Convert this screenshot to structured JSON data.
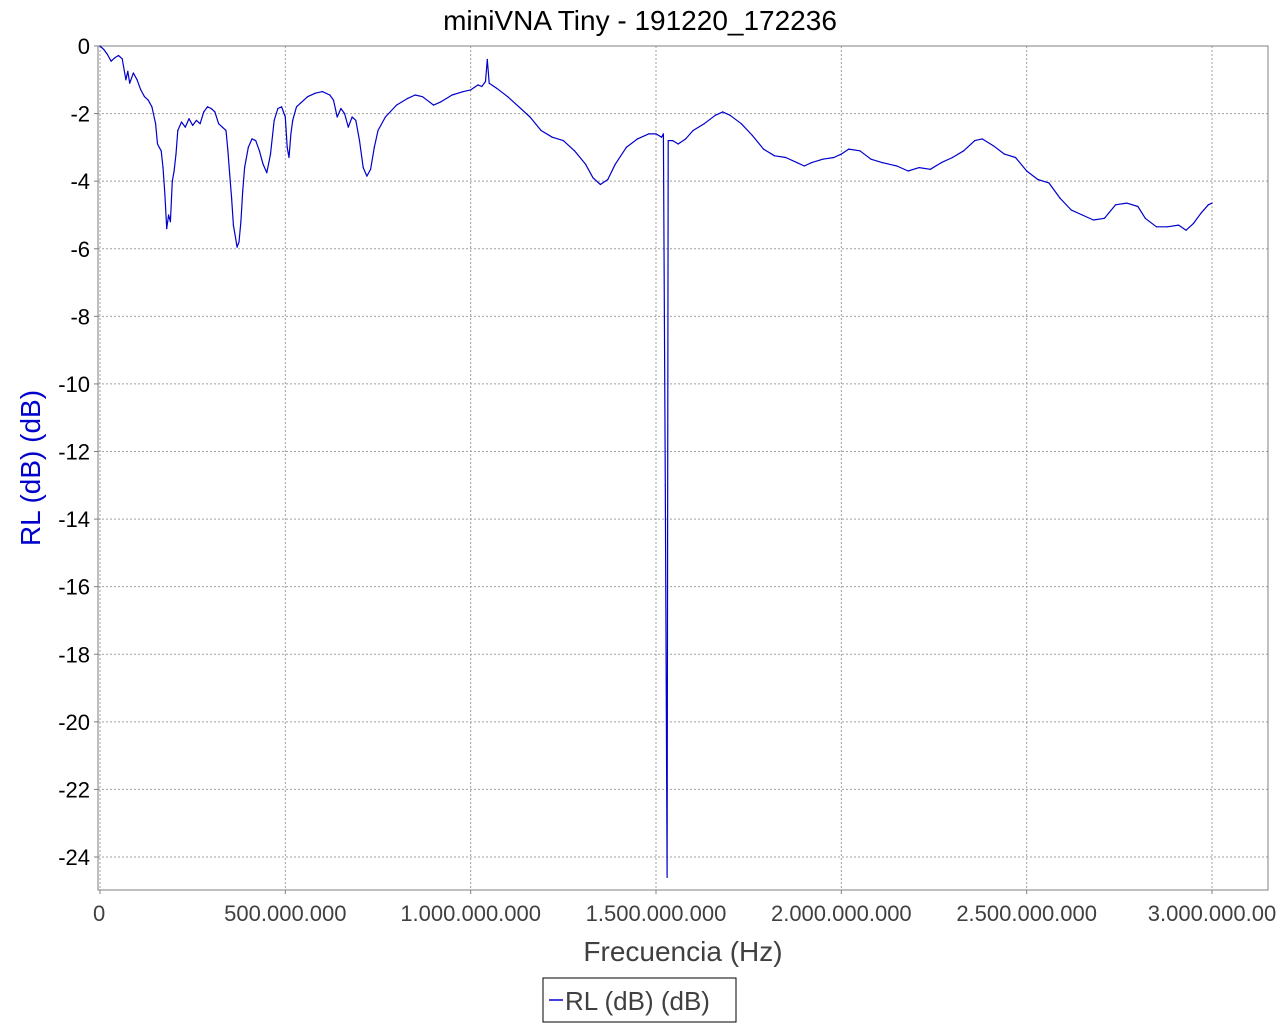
{
  "chart_data": {
    "type": "line",
    "title": "miniVNA Tiny - 191220_172236",
    "xlabel": "Frecuencia (Hz)",
    "ylabel": "RL (dB) (dB)",
    "xlim": [
      0,
      3080000000
    ],
    "ylim": [
      -25,
      0
    ],
    "grid": true,
    "legend_placement": "bottom-center",
    "x_ticks": [
      {
        "value": 0,
        "label": "0"
      },
      {
        "value": 500000000,
        "label": "500.000.000"
      },
      {
        "value": 1000000000,
        "label": "1.000.000.000"
      },
      {
        "value": 1500000000,
        "label": "1.500.000.000"
      },
      {
        "value": 2000000000,
        "label": "2.000.000.000"
      },
      {
        "value": 2500000000,
        "label": "2.500.000.000"
      },
      {
        "value": 3000000000,
        "label": "3.000.000.00"
      }
    ],
    "y_ticks": [
      {
        "value": 0,
        "label": "0"
      },
      {
        "value": -2,
        "label": "-2"
      },
      {
        "value": -4,
        "label": "-4"
      },
      {
        "value": -6,
        "label": "-6"
      },
      {
        "value": -8,
        "label": "-8"
      },
      {
        "value": -10,
        "label": "-10"
      },
      {
        "value": -12,
        "label": "-12"
      },
      {
        "value": -14,
        "label": "-14"
      },
      {
        "value": -16,
        "label": "-16"
      },
      {
        "value": -18,
        "label": "-18"
      },
      {
        "value": -20,
        "label": "-20"
      },
      {
        "value": -22,
        "label": "-22"
      },
      {
        "value": -24,
        "label": "-24"
      }
    ],
    "series": [
      {
        "name": "RL (dB) (dB)",
        "color": "#0000cc",
        "points": [
          [
            0,
            0
          ],
          [
            10000000,
            -0.1
          ],
          [
            20000000,
            -0.25
          ],
          [
            30000000,
            -0.45
          ],
          [
            40000000,
            -0.35
          ],
          [
            50000000,
            -0.28
          ],
          [
            60000000,
            -0.38
          ],
          [
            70000000,
            -1.0
          ],
          [
            75000000,
            -0.75
          ],
          [
            80000000,
            -1.1
          ],
          [
            90000000,
            -0.8
          ],
          [
            100000000,
            -1.0
          ],
          [
            110000000,
            -1.3
          ],
          [
            120000000,
            -1.5
          ],
          [
            130000000,
            -1.6
          ],
          [
            140000000,
            -1.8
          ],
          [
            150000000,
            -2.3
          ],
          [
            155000000,
            -2.9
          ],
          [
            160000000,
            -3.0
          ],
          [
            165000000,
            -3.1
          ],
          [
            170000000,
            -3.6
          ],
          [
            175000000,
            -4.4
          ],
          [
            180000000,
            -5.4
          ],
          [
            185000000,
            -5.0
          ],
          [
            190000000,
            -5.2
          ],
          [
            195000000,
            -4.0
          ],
          [
            200000000,
            -3.7
          ],
          [
            205000000,
            -3.2
          ],
          [
            210000000,
            -2.5
          ],
          [
            220000000,
            -2.25
          ],
          [
            230000000,
            -2.4
          ],
          [
            240000000,
            -2.15
          ],
          [
            250000000,
            -2.35
          ],
          [
            260000000,
            -2.2
          ],
          [
            270000000,
            -2.3
          ],
          [
            280000000,
            -1.95
          ],
          [
            290000000,
            -1.8
          ],
          [
            300000000,
            -1.85
          ],
          [
            310000000,
            -1.95
          ],
          [
            320000000,
            -2.3
          ],
          [
            330000000,
            -2.4
          ],
          [
            340000000,
            -2.5
          ],
          [
            345000000,
            -3.1
          ],
          [
            350000000,
            -3.8
          ],
          [
            355000000,
            -4.5
          ],
          [
            360000000,
            -5.3
          ],
          [
            370000000,
            -5.95
          ],
          [
            375000000,
            -5.8
          ],
          [
            380000000,
            -5.2
          ],
          [
            385000000,
            -4.3
          ],
          [
            390000000,
            -3.6
          ],
          [
            400000000,
            -3.0
          ],
          [
            410000000,
            -2.75
          ],
          [
            420000000,
            -2.8
          ],
          [
            430000000,
            -3.1
          ],
          [
            440000000,
            -3.5
          ],
          [
            450000000,
            -3.75
          ],
          [
            460000000,
            -3.2
          ],
          [
            470000000,
            -2.2
          ],
          [
            480000000,
            -1.85
          ],
          [
            490000000,
            -1.8
          ],
          [
            500000000,
            -2.1
          ],
          [
            505000000,
            -3.0
          ],
          [
            510000000,
            -3.3
          ],
          [
            515000000,
            -2.6
          ],
          [
            520000000,
            -2.2
          ],
          [
            530000000,
            -1.8
          ],
          [
            540000000,
            -1.7
          ],
          [
            560000000,
            -1.5
          ],
          [
            580000000,
            -1.4
          ],
          [
            600000000,
            -1.35
          ],
          [
            620000000,
            -1.45
          ],
          [
            630000000,
            -1.6
          ],
          [
            640000000,
            -2.1
          ],
          [
            650000000,
            -1.85
          ],
          [
            660000000,
            -2.0
          ],
          [
            670000000,
            -2.4
          ],
          [
            680000000,
            -2.1
          ],
          [
            690000000,
            -2.2
          ],
          [
            700000000,
            -2.8
          ],
          [
            710000000,
            -3.6
          ],
          [
            720000000,
            -3.85
          ],
          [
            730000000,
            -3.65
          ],
          [
            740000000,
            -3.0
          ],
          [
            750000000,
            -2.5
          ],
          [
            770000000,
            -2.1
          ],
          [
            800000000,
            -1.75
          ],
          [
            830000000,
            -1.55
          ],
          [
            850000000,
            -1.45
          ],
          [
            870000000,
            -1.5
          ],
          [
            900000000,
            -1.75
          ],
          [
            920000000,
            -1.65
          ],
          [
            950000000,
            -1.45
          ],
          [
            980000000,
            -1.35
          ],
          [
            1000000000,
            -1.3
          ],
          [
            1020000000,
            -1.15
          ],
          [
            1030000000,
            -1.2
          ],
          [
            1040000000,
            -1.05
          ],
          [
            1045000000,
            -0.4
          ],
          [
            1050000000,
            -1.1
          ],
          [
            1070000000,
            -1.25
          ],
          [
            1100000000,
            -1.5
          ],
          [
            1130000000,
            -1.8
          ],
          [
            1160000000,
            -2.1
          ],
          [
            1190000000,
            -2.5
          ],
          [
            1220000000,
            -2.7
          ],
          [
            1250000000,
            -2.8
          ],
          [
            1280000000,
            -3.1
          ],
          [
            1310000000,
            -3.5
          ],
          [
            1330000000,
            -3.9
          ],
          [
            1350000000,
            -4.1
          ],
          [
            1370000000,
            -3.95
          ],
          [
            1390000000,
            -3.5
          ],
          [
            1420000000,
            -3.0
          ],
          [
            1450000000,
            -2.75
          ],
          [
            1480000000,
            -2.6
          ],
          [
            1500000000,
            -2.6
          ],
          [
            1515000000,
            -2.7
          ],
          [
            1520000000,
            -2.6
          ],
          [
            1525000000,
            -13.0
          ],
          [
            1530000000,
            -24.6
          ],
          [
            1533000000,
            -2.8
          ],
          [
            1545000000,
            -2.8
          ],
          [
            1560000000,
            -2.9
          ],
          [
            1580000000,
            -2.75
          ],
          [
            1600000000,
            -2.5
          ],
          [
            1630000000,
            -2.3
          ],
          [
            1660000000,
            -2.05
          ],
          [
            1680000000,
            -1.95
          ],
          [
            1700000000,
            -2.05
          ],
          [
            1730000000,
            -2.3
          ],
          [
            1760000000,
            -2.65
          ],
          [
            1790000000,
            -3.05
          ],
          [
            1820000000,
            -3.25
          ],
          [
            1850000000,
            -3.3
          ],
          [
            1880000000,
            -3.45
          ],
          [
            1900000000,
            -3.55
          ],
          [
            1920000000,
            -3.45
          ],
          [
            1950000000,
            -3.35
          ],
          [
            1980000000,
            -3.3
          ],
          [
            2000000000,
            -3.2
          ],
          [
            2020000000,
            -3.05
          ],
          [
            2050000000,
            -3.1
          ],
          [
            2080000000,
            -3.35
          ],
          [
            2110000000,
            -3.45
          ],
          [
            2150000000,
            -3.55
          ],
          [
            2180000000,
            -3.7
          ],
          [
            2210000000,
            -3.6
          ],
          [
            2240000000,
            -3.65
          ],
          [
            2270000000,
            -3.45
          ],
          [
            2300000000,
            -3.3
          ],
          [
            2330000000,
            -3.1
          ],
          [
            2360000000,
            -2.8
          ],
          [
            2380000000,
            -2.75
          ],
          [
            2410000000,
            -2.95
          ],
          [
            2440000000,
            -3.2
          ],
          [
            2470000000,
            -3.3
          ],
          [
            2500000000,
            -3.7
          ],
          [
            2530000000,
            -3.95
          ],
          [
            2560000000,
            -4.05
          ],
          [
            2590000000,
            -4.5
          ],
          [
            2620000000,
            -4.85
          ],
          [
            2650000000,
            -5.0
          ],
          [
            2680000000,
            -5.15
          ],
          [
            2710000000,
            -5.1
          ],
          [
            2740000000,
            -4.7
          ],
          [
            2770000000,
            -4.65
          ],
          [
            2800000000,
            -4.75
          ],
          [
            2820000000,
            -5.1
          ],
          [
            2850000000,
            -5.35
          ],
          [
            2880000000,
            -5.35
          ],
          [
            2910000000,
            -5.3
          ],
          [
            2930000000,
            -5.45
          ],
          [
            2950000000,
            -5.25
          ],
          [
            2970000000,
            -4.95
          ],
          [
            2990000000,
            -4.7
          ],
          [
            3000000000,
            -4.65
          ]
        ]
      }
    ]
  }
}
